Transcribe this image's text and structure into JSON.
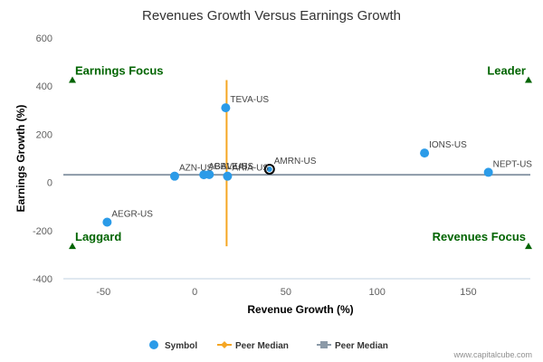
{
  "chart_data": {
    "type": "scatter",
    "title": "Revenues Growth Versus Earnings Growth",
    "xlabel": "Revenue Growth (%)",
    "ylabel": "Earnings Growth (%)",
    "xlim": [
      -72,
      184
    ],
    "ylim": [
      -400,
      600
    ],
    "xticks": [
      -50,
      0,
      50,
      100,
      150
    ],
    "yticks": [
      -400,
      -200,
      0,
      200,
      400,
      600
    ],
    "series": [
      {
        "name": "Symbol",
        "color": "#2b9be8",
        "points": [
          {
            "label": "TEVA-US",
            "x": 17,
            "y": 310,
            "highlight": false
          },
          {
            "label": "IONS-US",
            "x": 126,
            "y": 122,
            "highlight": false
          },
          {
            "label": "NEPT-US",
            "x": 161,
            "y": 42,
            "highlight": false
          },
          {
            "label": "AMRN-US",
            "x": 41,
            "y": 55,
            "highlight": true
          },
          {
            "label": "AZN-US",
            "x": -11,
            "y": 26,
            "highlight": false
          },
          {
            "label": "ABBV-US",
            "x": 5,
            "y": 32,
            "highlight": false
          },
          {
            "label": "GALE-US",
            "x": 8,
            "y": 33,
            "highlight": false
          },
          {
            "label": "ARIA-US",
            "x": 18,
            "y": 26,
            "highlight": false
          },
          {
            "label": "AEGR-US",
            "x": -48,
            "y": -165,
            "highlight": false
          }
        ]
      },
      {
        "name": "Peer Median",
        "color": "#f5a623",
        "orientation": "vertical",
        "x": 17.5,
        "y_range": [
          -265,
          425
        ]
      },
      {
        "name": "Peer Median",
        "color": "#8c9aa8",
        "orientation": "horizontal",
        "y": 32,
        "x_range": [
          -72,
          184
        ]
      }
    ],
    "quadrants": [
      {
        "label": "Earnings Focus",
        "x": -69,
        "y": 425,
        "anchor": "start"
      },
      {
        "label": "Leader",
        "x": 184,
        "y": 425,
        "anchor": "end"
      },
      {
        "label": "Laggard",
        "x": -69,
        "y": -265,
        "anchor": "start"
      },
      {
        "label": "Revenues Focus",
        "x": 184,
        "y": -265,
        "anchor": "end"
      }
    ],
    "legend": {
      "position": "bottom-center",
      "items": [
        {
          "label": "Symbol",
          "marker": "circle",
          "color": "#2b9be8"
        },
        {
          "label": "Peer Median",
          "marker": "diamond-line",
          "color": "#f5a623"
        },
        {
          "label": "Peer Median",
          "marker": "square-line",
          "color": "#8c9aa8"
        }
      ]
    },
    "grid": false
  },
  "credit": "www.capitalcube.com",
  "colors": {
    "quadrant_text": "#006400",
    "axis_line": "#c0d0e0"
  }
}
